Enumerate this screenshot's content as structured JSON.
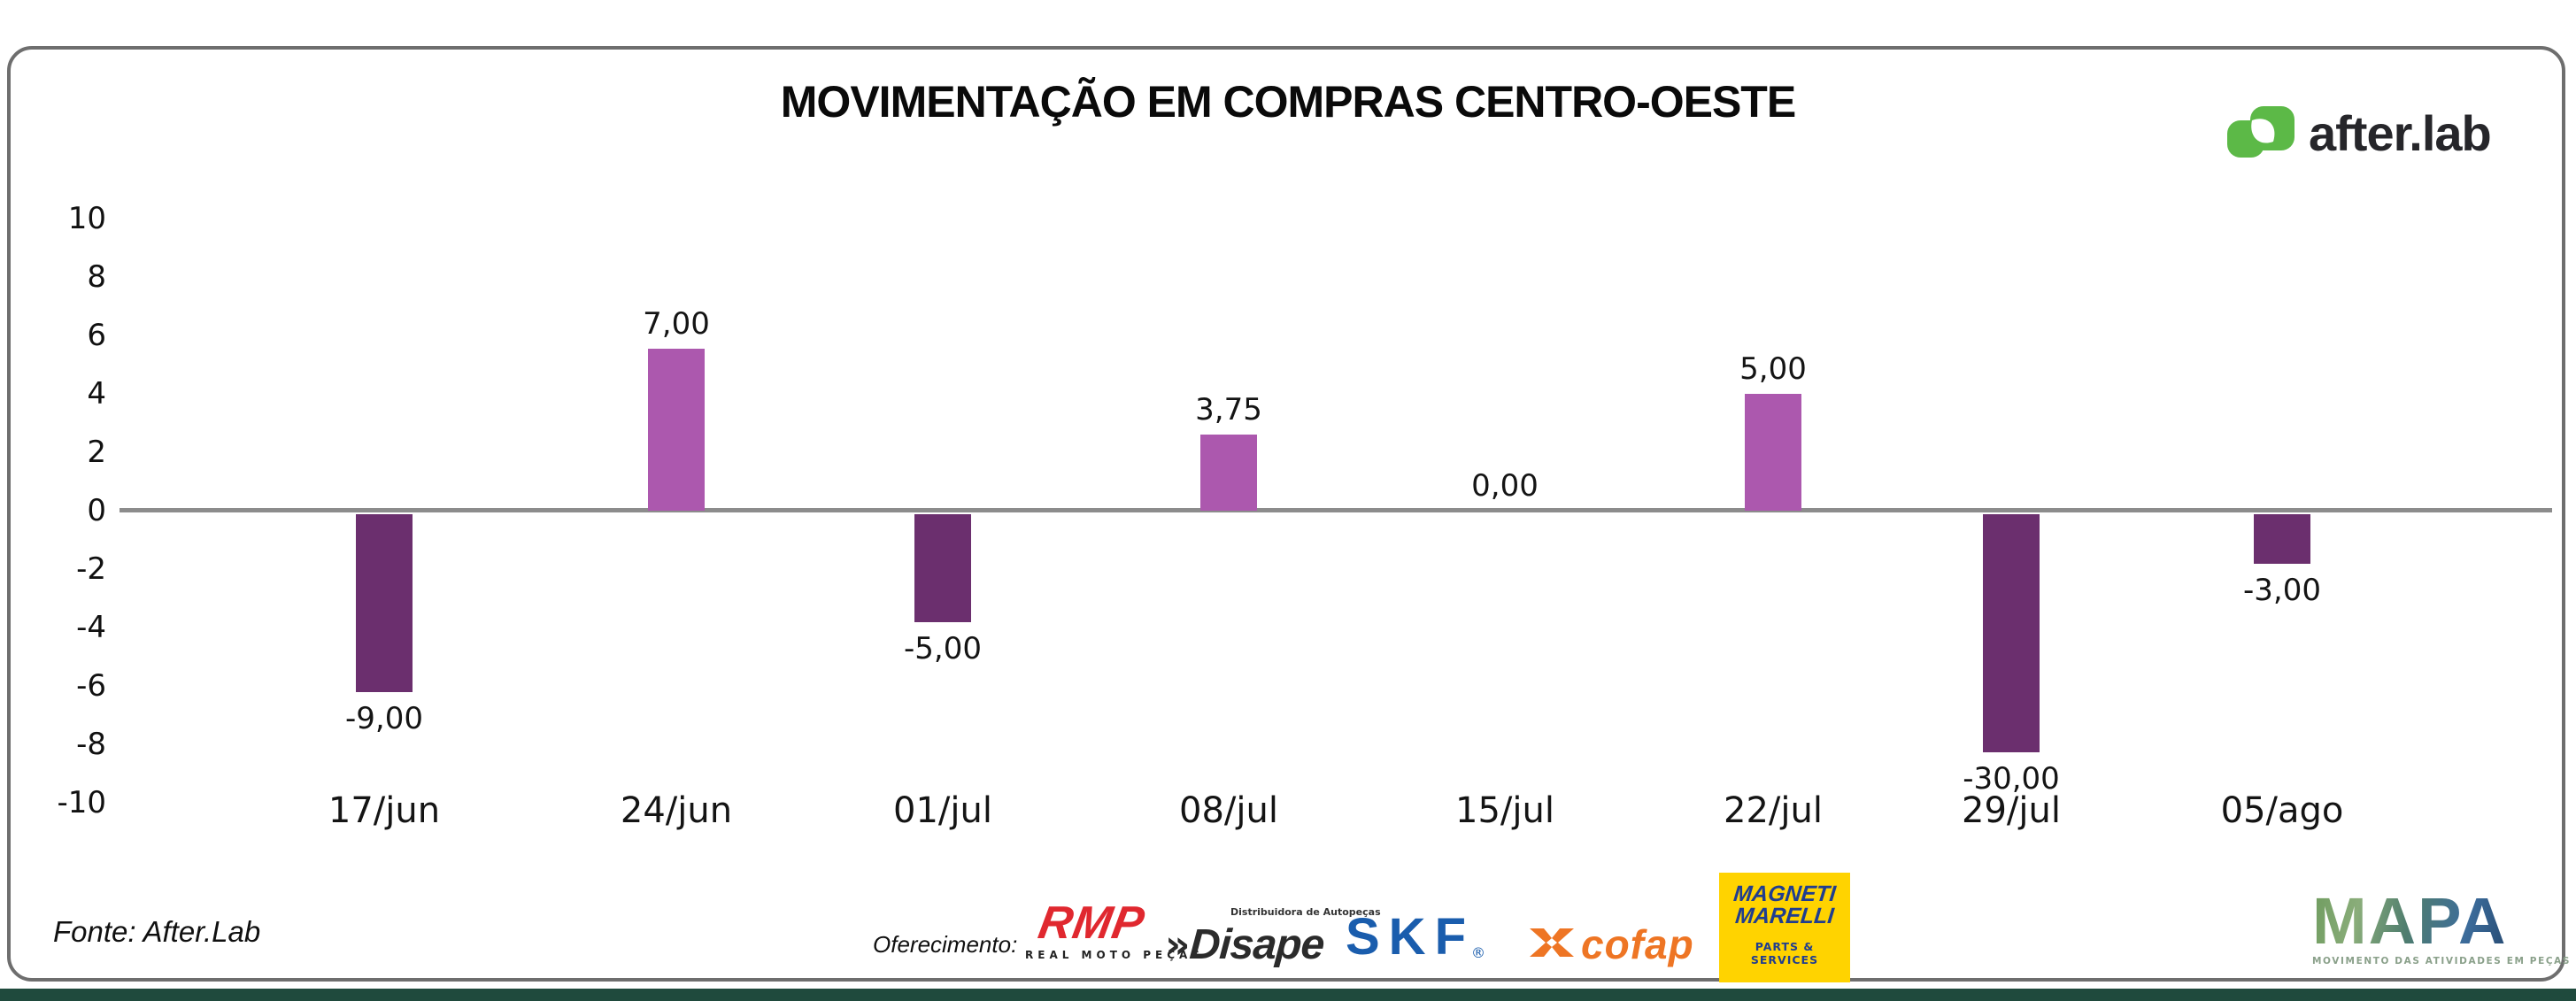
{
  "card": {
    "title": "MOVIMENTAÇÃO EM COMPRAS CENTRO-OESTE",
    "brand": {
      "name": "after.lab",
      "green": "#5cb947",
      "text_color": "#26262a"
    },
    "footer": {
      "source": "Fonte: After.Lab",
      "offering_label": "Oferecimento:"
    },
    "sponsors": {
      "rmp": {
        "name": "RMP",
        "tagline": "REAL MOTO PEÇAS",
        "color": "#e0282f"
      },
      "disape": {
        "prefix": "»",
        "name": "Disape",
        "tagline": "Distribuidora de Autopeças",
        "color": "#2b2b2b"
      },
      "skf": {
        "name": "SKF",
        "reg": "®",
        "color": "#1a5dad"
      },
      "cofap": {
        "name": "cofap",
        "color": "#ee7524"
      },
      "magneti_marelli": {
        "line1": "MAGNETI",
        "line2": "MARELLI",
        "tagline": "PARTS & SERVICES",
        "bg": "#ffd300",
        "text_color": "#203d8f"
      },
      "mapa": {
        "name": "MAPA",
        "tagline": "MOVIMENTO DAS ATIVIDADES EM PEÇAS E ACESSÓRIOS"
      }
    }
  },
  "chart_data": {
    "type": "bar",
    "title": "MOVIMENTAÇÃO EM COMPRAS CENTRO-OESTE",
    "categories": [
      "17/jun",
      "24/jun",
      "01/jul",
      "08/jul",
      "15/jul",
      "22/jul",
      "29/jul",
      "05/ago"
    ],
    "values": [
      -9,
      7,
      -5,
      3.75,
      0,
      5,
      -30,
      -3
    ],
    "value_labels": [
      "-9,00",
      "7,00",
      "-5,00",
      "3,75",
      "0,00",
      "5,00",
      "-30,00",
      "-3,00"
    ],
    "plotted_bar_units": [
      -6.1,
      5.55,
      -3.7,
      2.6,
      0,
      4.0,
      -8.15,
      -1.7
    ],
    "ylim": [
      -10,
      10
    ],
    "yticks": [
      10,
      8,
      6,
      4,
      2,
      0,
      -2,
      -4,
      -6,
      -8,
      -10
    ],
    "grid": false,
    "legend": false,
    "colors": {
      "positive": "#ac58ae",
      "negative": "#6b2f6e",
      "zero_line": "#8c8c8c",
      "label": "#141414"
    }
  }
}
